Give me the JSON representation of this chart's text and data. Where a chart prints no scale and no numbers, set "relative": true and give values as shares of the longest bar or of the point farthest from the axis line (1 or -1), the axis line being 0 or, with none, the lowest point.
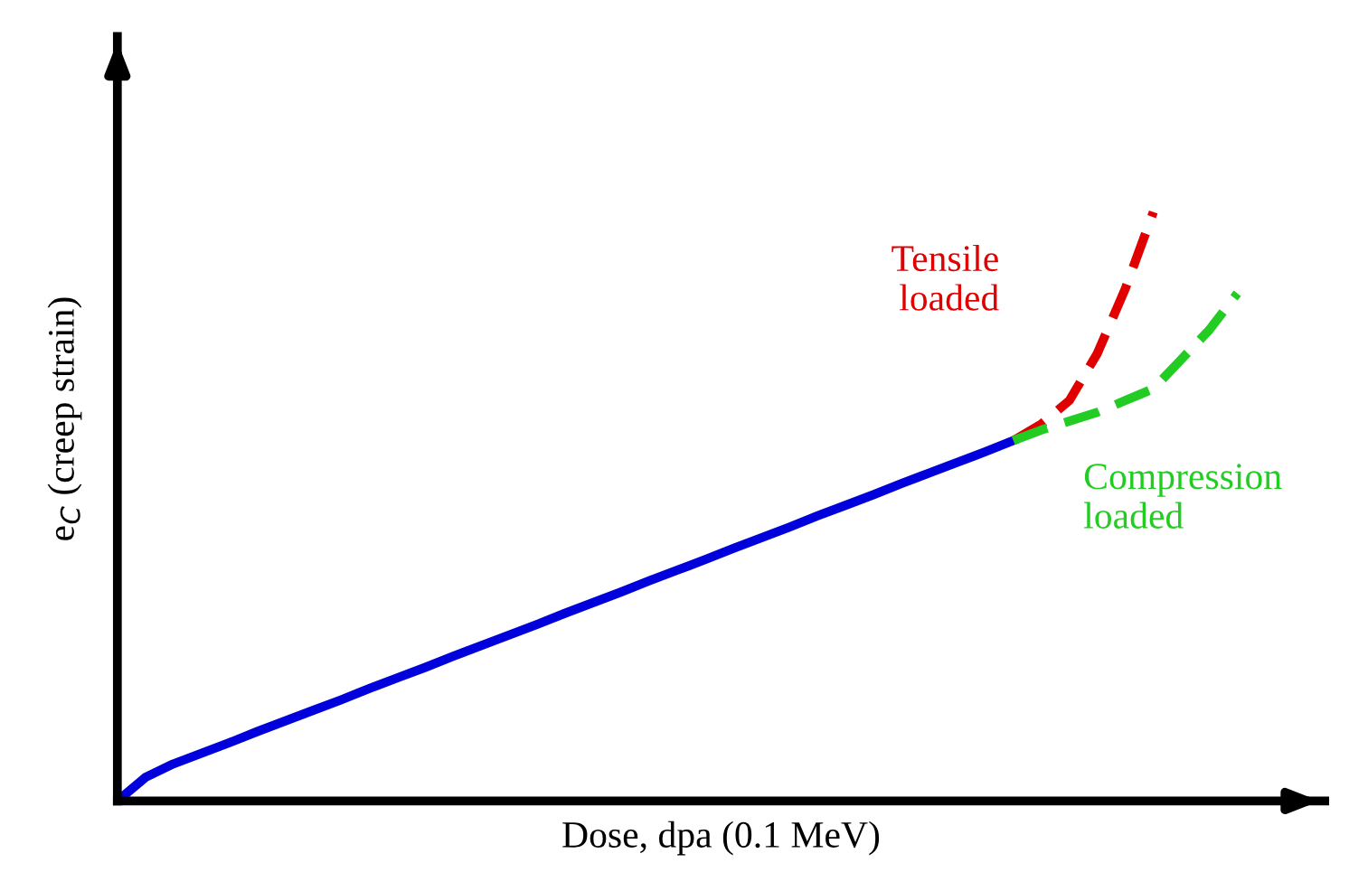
{
  "chart_data": {
    "type": "line",
    "relative": true,
    "xlabel": "Dose, dpa (0.1 MeV)",
    "ylabel": "e$_{C}$ (creep strain)",
    "categories": [
      null,
      null,
      null,
      null,
      null,
      null,
      null,
      null,
      null,
      null,
      null,
      null,
      null,
      null,
      null,
      null,
      null,
      null,
      null,
      null,
      null,
      null,
      null,
      null,
      null,
      null,
      null,
      null,
      null,
      null,
      null,
      null,
      null,
      null,
      null,
      null,
      null,
      null,
      null,
      null,
      null
    ],
    "series": [
      {
        "color": "#0000dd",
        "line_style": "solid",
        "values": [
          0,
          0.04,
          0.063,
          0.081,
          0.099,
          0.118,
          0.136,
          0.154,
          0.172,
          0.191,
          0.209,
          0.227,
          0.246,
          0.264,
          0.282,
          0.3,
          0.319,
          0.337,
          0.355,
          0.374,
          0.392,
          0.41,
          0.429,
          0.447,
          0.465,
          0.484,
          0.502,
          0.52,
          0.539,
          0.557,
          0.575,
          0.593,
          0.612,
          null,
          null,
          null,
          null,
          null,
          null,
          null,
          null
        ]
      },
      {
        "name": "Tensile\nloaded",
        "color": "#e00000",
        "line_style": "dashed",
        "values": [
          null,
          null,
          null,
          null,
          null,
          null,
          null,
          null,
          null,
          null,
          null,
          null,
          null,
          null,
          null,
          null,
          null,
          null,
          null,
          null,
          null,
          null,
          null,
          null,
          null,
          null,
          null,
          null,
          null,
          null,
          null,
          null,
          0.612,
          0.64,
          0.68,
          0.76,
          0.87,
          1.0,
          null,
          null,
          null
        ]
      },
      {
        "name": "Compression\nloaded",
        "color": "#22cc22",
        "line_style": "dashed",
        "values": [
          null,
          null,
          null,
          null,
          null,
          null,
          null,
          null,
          null,
          null,
          null,
          null,
          null,
          null,
          null,
          null,
          null,
          null,
          null,
          null,
          null,
          null,
          null,
          null,
          null,
          null,
          null,
          null,
          null,
          null,
          null,
          null,
          0.612,
          0.63,
          0.645,
          0.66,
          0.68,
          0.7,
          0.75,
          0.8,
          0.862
        ]
      }
    ]
  }
}
